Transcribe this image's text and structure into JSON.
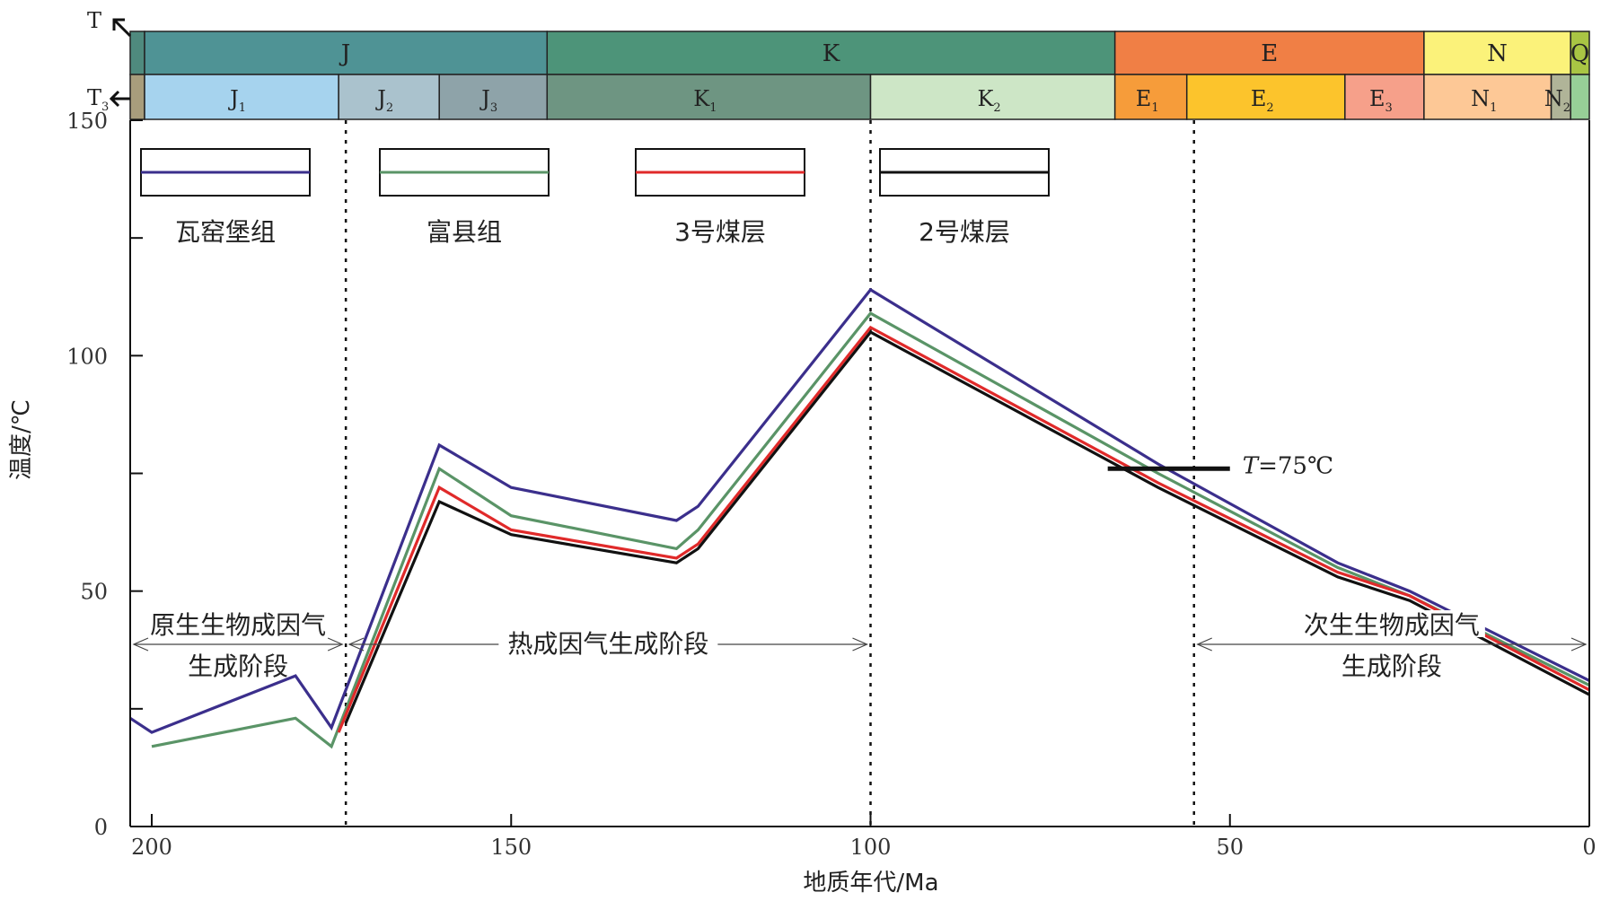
{
  "chart_data": {
    "type": "line",
    "xlabel": "地质年代/Ma",
    "ylabel": "温度/℃",
    "xlim": [
      203,
      0
    ],
    "ylim": [
      0,
      150
    ],
    "xticks": [
      200,
      150,
      100,
      50,
      0
    ],
    "yticks": [
      0,
      50,
      100,
      150
    ],
    "series": [
      {
        "name": "瓦窑堡组",
        "color": "#3b2f8c",
        "points": [
          [
            203,
            23
          ],
          [
            200,
            20
          ],
          [
            180,
            32
          ],
          [
            175,
            21
          ],
          [
            160,
            81
          ],
          [
            150,
            72
          ],
          [
            127,
            65
          ],
          [
            124,
            68
          ],
          [
            100,
            114
          ],
          [
            60,
            77
          ],
          [
            35,
            56
          ],
          [
            25,
            50
          ],
          [
            0,
            31
          ]
        ]
      },
      {
        "name": "富县组",
        "color": "#5a9467",
        "points": [
          [
            200,
            17
          ],
          [
            180,
            23
          ],
          [
            175,
            17
          ],
          [
            160,
            76
          ],
          [
            150,
            66
          ],
          [
            127,
            59
          ],
          [
            124,
            63
          ],
          [
            100,
            109
          ],
          [
            60,
            75
          ],
          [
            35,
            55
          ],
          [
            25,
            49
          ],
          [
            0,
            30
          ]
        ]
      },
      {
        "name": "3号煤层",
        "color": "#e02a2a",
        "points": [
          [
            174,
            20
          ],
          [
            160,
            72
          ],
          [
            150,
            63
          ],
          [
            127,
            57
          ],
          [
            124,
            60
          ],
          [
            100,
            106
          ],
          [
            60,
            73
          ],
          [
            35,
            54
          ],
          [
            25,
            49
          ],
          [
            0,
            29
          ]
        ]
      },
      {
        "name": "2号煤层",
        "color": "#111111",
        "points": [
          [
            173,
            22
          ],
          [
            160,
            69
          ],
          [
            150,
            62
          ],
          [
            127,
            56
          ],
          [
            124,
            59
          ],
          [
            100,
            105
          ],
          [
            60,
            72
          ],
          [
            35,
            53
          ],
          [
            25,
            48
          ],
          [
            0,
            28
          ]
        ]
      }
    ],
    "stage_boundaries": [
      173,
      100,
      55
    ],
    "stages": [
      {
        "line1": "原生生物成因气",
        "line2": "生成阶段",
        "from": 203,
        "to": 173
      },
      {
        "line1": "热成因气生成阶段",
        "line2": "",
        "from": 173,
        "to": 100
      },
      {
        "line1": "次生生物成因气",
        "line2": "生成阶段",
        "from": 55,
        "to": 0
      }
    ],
    "annotation": {
      "italic": "T",
      "rest": "=75℃",
      "value": 76,
      "from": 67,
      "to": 50
    },
    "timescale": {
      "row_labels": [
        "T",
        "T"
      ],
      "row_label_subs": [
        "",
        "3"
      ],
      "periods": [
        {
          "label": "",
          "from": 203,
          "to": 201,
          "color": "#4f8a7e"
        },
        {
          "label": "J",
          "from": 201,
          "to": 145,
          "color": "#4f9395"
        },
        {
          "label": "K",
          "from": 145,
          "to": 66,
          "color": "#4d9479"
        },
        {
          "label": "E",
          "from": 66,
          "to": 23,
          "color": "#f07f45"
        },
        {
          "label": "N",
          "from": 23,
          "to": 2.6,
          "color": "#fbf27a"
        },
        {
          "label": "Q",
          "from": 2.6,
          "to": 0,
          "color": "#a9c544"
        }
      ],
      "epochs": [
        {
          "label": "",
          "sub": "",
          "from": 203,
          "to": 201,
          "color": "#a89d7c"
        },
        {
          "label": "J",
          "sub": "1",
          "from": 201,
          "to": 174,
          "color": "#a6d3ee"
        },
        {
          "label": "J",
          "sub": "2",
          "from": 174,
          "to": 160,
          "color": "#aac2cd"
        },
        {
          "label": "J",
          "sub": "3",
          "from": 160,
          "to": 145,
          "color": "#8ea3a9"
        },
        {
          "label": "K",
          "sub": "1",
          "from": 145,
          "to": 100,
          "color": "#6e9582"
        },
        {
          "label": "K",
          "sub": "2",
          "from": 100,
          "to": 66,
          "color": "#cde6c6"
        },
        {
          "label": "E",
          "sub": "1",
          "from": 66,
          "to": 56,
          "color": "#f69c3a"
        },
        {
          "label": "E",
          "sub": "2",
          "from": 56,
          "to": 34,
          "color": "#fcc42c"
        },
        {
          "label": "E",
          "sub": "3",
          "from": 34,
          "to": 23,
          "color": "#f6a08a"
        },
        {
          "label": "N",
          "sub": "1",
          "from": 23,
          "to": 5.3,
          "color": "#fdc896"
        },
        {
          "label": "N",
          "sub": "2",
          "from": 5.3,
          "to": 2.6,
          "color": "#b0b498"
        },
        {
          "label": "",
          "sub": "",
          "from": 2.6,
          "to": 0,
          "color": "#97cf97"
        }
      ]
    }
  }
}
